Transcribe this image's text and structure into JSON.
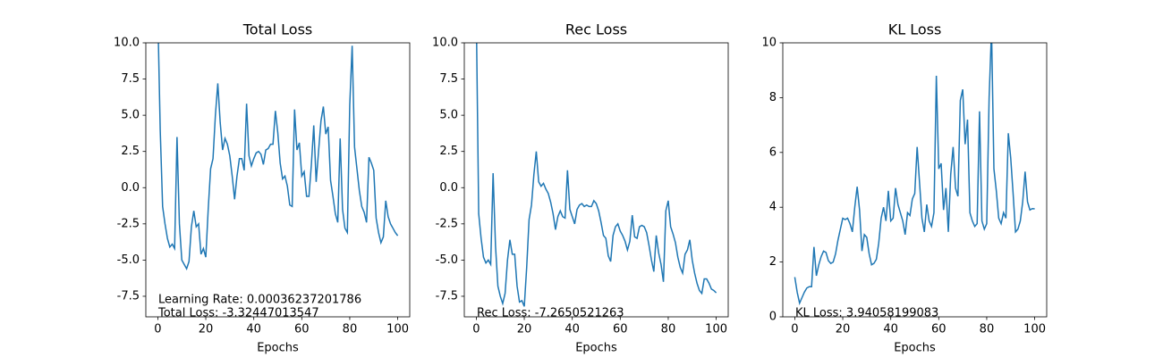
{
  "chart_data": [
    {
      "type": "line",
      "title": "Total Loss",
      "xlabel": "Epochs",
      "color": "#1f77b4",
      "annotations": [
        "Learning Rate: 0.00036237201786",
        "Total Loss: -3.32447013547"
      ],
      "xlim": [
        -5,
        105
      ],
      "xticks": [
        0,
        20,
        40,
        60,
        80,
        100
      ],
      "ylim": [
        -8.92,
        10
      ],
      "yticks": [
        -7.5,
        {
          "value": -5,
          "label": "-5.0"
        },
        -2.5,
        {
          "value": 0,
          "label": "0.0"
        },
        2.5,
        {
          "value": 5,
          "label": "5.0"
        },
        7.5,
        {
          "value": 10,
          "label": "10.0"
        }
      ],
      "x": [
        0,
        1,
        2,
        3,
        4,
        5,
        6,
        7,
        8,
        9,
        10,
        11,
        12,
        13,
        14,
        15,
        16,
        17,
        18,
        19,
        20,
        21,
        22,
        23,
        24,
        25,
        26,
        27,
        28,
        29,
        30,
        31,
        32,
        33,
        34,
        35,
        36,
        37,
        38,
        39,
        40,
        41,
        42,
        43,
        44,
        45,
        46,
        47,
        48,
        49,
        50,
        51,
        52,
        53,
        54,
        55,
        56,
        57,
        58,
        59,
        60,
        61,
        62,
        63,
        64,
        65,
        66,
        67,
        68,
        69,
        70,
        71,
        72,
        73,
        74,
        75,
        76,
        77,
        78,
        79,
        80,
        81,
        82,
        83,
        84,
        85,
        86,
        87,
        88,
        89,
        90,
        91,
        92,
        93,
        94,
        95,
        96,
        97,
        98,
        99,
        100
      ],
      "values": [
        12,
        4,
        -1.3,
        -2.5,
        -3.5,
        -4.1,
        -3.9,
        -4.2,
        3.5,
        -2.5,
        -5,
        -5.3,
        -5.6,
        -5.1,
        -2.7,
        -1.6,
        -2.7,
        -2.5,
        -4.6,
        -4.2,
        -4.8,
        -1.5,
        1.3,
        2,
        5,
        7.2,
        4.5,
        2.6,
        3.4,
        3,
        2.2,
        0.8,
        -0.8,
        0.8,
        2,
        2,
        1.2,
        5.8,
        2.2,
        1.5,
        2,
        2.4,
        2.5,
        2.3,
        1.6,
        2.6,
        2.7,
        3,
        3,
        5.3,
        3.8,
        1.7,
        0.6,
        0.8,
        0.1,
        -1.2,
        -1.3,
        5.4,
        2.6,
        3.1,
        0.8,
        1.1,
        -0.6,
        -0.6,
        1.6,
        4.3,
        0.4,
        2.5,
        4.6,
        5.6,
        3.7,
        4.2,
        0.5,
        -0.6,
        -1.8,
        -2.4,
        3.4,
        -1.5,
        -2.8,
        -3.1,
        5.7,
        9.8,
        2.8,
        1.3,
        -0.2,
        -1.3,
        -1.7,
        -2.4,
        2.1,
        1.7,
        1.2,
        -2.1,
        -3.1,
        -3.8,
        -3.4,
        -0.9,
        -2,
        -2.5,
        -2.8,
        -3.1,
        -3.32
      ]
    },
    {
      "type": "line",
      "title": "Rec Loss",
      "xlabel": "Epochs",
      "color": "#1f77b4",
      "annotations": [
        "Rec Loss: -7.2650521263"
      ],
      "xlim": [
        -5,
        105
      ],
      "xticks": [
        0,
        20,
        40,
        60,
        80,
        100
      ],
      "ylim": [
        -8.92,
        10
      ],
      "yticks": [
        -7.5,
        {
          "value": -5,
          "label": "-5.0"
        },
        -2.5,
        {
          "value": 0,
          "label": "0.0"
        },
        2.5,
        {
          "value": 5,
          "label": "5.0"
        },
        7.5,
        {
          "value": 10,
          "label": "10.0"
        }
      ],
      "x": [
        0,
        1,
        2,
        3,
        4,
        5,
        6,
        7,
        8,
        9,
        10,
        11,
        12,
        13,
        14,
        15,
        16,
        17,
        18,
        19,
        20,
        21,
        22,
        23,
        24,
        25,
        26,
        27,
        28,
        29,
        30,
        31,
        32,
        33,
        34,
        35,
        36,
        37,
        38,
        39,
        40,
        41,
        42,
        43,
        44,
        45,
        46,
        47,
        48,
        49,
        50,
        51,
        52,
        53,
        54,
        55,
        56,
        57,
        58,
        59,
        60,
        61,
        62,
        63,
        64,
        65,
        66,
        67,
        68,
        69,
        70,
        71,
        72,
        73,
        74,
        75,
        76,
        77,
        78,
        79,
        80,
        81,
        82,
        83,
        84,
        85,
        86,
        87,
        88,
        89,
        90,
        91,
        92,
        93,
        94,
        95,
        96,
        97,
        98,
        99,
        100
      ],
      "values": [
        12,
        -1.8,
        -3.5,
        -4.8,
        -5.2,
        -5,
        -5.3,
        1,
        -4,
        -6.8,
        -7.5,
        -8,
        -7.3,
        -5,
        -3.6,
        -4.6,
        -4.6,
        -6.8,
        -7.9,
        -7.8,
        -8.2,
        -5.5,
        -2.2,
        -1.2,
        0.9,
        2.5,
        0.4,
        0.1,
        0.3,
        -0.1,
        -0.4,
        -1,
        -1.8,
        -2.9,
        -2,
        -1.6,
        -2,
        -2.1,
        1.2,
        -1.5,
        -2,
        -2.5,
        -1.5,
        -1.2,
        -1.1,
        -1.3,
        -1.2,
        -1.3,
        -1.3,
        -0.9,
        -1.1,
        -1.6,
        -2.4,
        -3.3,
        -3.5,
        -4.7,
        -5.1,
        -3.3,
        -2.7,
        -2.5,
        -3,
        -3.3,
        -3.7,
        -4.3,
        -3.7,
        -1.9,
        -3.4,
        -3.5,
        -2.7,
        -2.6,
        -2.7,
        -3.1,
        -4,
        -5,
        -5.8,
        -3.3,
        -4.5,
        -5.3,
        -6.5,
        -1.6,
        -0.9,
        -2.7,
        -3.2,
        -3.8,
        -4.8,
        -5.5,
        -5.9,
        -4.6,
        -4.3,
        -3.6,
        -5,
        -5.9,
        -6.6,
        -7.1,
        -7.3,
        -6.3,
        -6.3,
        -6.6,
        -7,
        -7.1,
        -7.2650521263
      ]
    },
    {
      "type": "line",
      "title": "KL Loss",
      "xlabel": "Epochs",
      "color": "#1f77b4",
      "annotations": [
        "KL Loss: 3.94058199083"
      ],
      "xlim": [
        -5,
        105
      ],
      "xticks": [
        0,
        20,
        40,
        60,
        80,
        100
      ],
      "ylim": [
        0,
        10
      ],
      "yticks": [
        0,
        2,
        4,
        6,
        8,
        10
      ],
      "x": [
        0,
        1,
        2,
        3,
        4,
        5,
        6,
        7,
        8,
        9,
        10,
        11,
        12,
        13,
        14,
        15,
        16,
        17,
        18,
        19,
        20,
        21,
        22,
        23,
        24,
        25,
        26,
        27,
        28,
        29,
        30,
        31,
        32,
        33,
        34,
        35,
        36,
        37,
        38,
        39,
        40,
        41,
        42,
        43,
        44,
        45,
        46,
        47,
        48,
        49,
        50,
        51,
        52,
        53,
        54,
        55,
        56,
        57,
        58,
        59,
        60,
        61,
        62,
        63,
        64,
        65,
        66,
        67,
        68,
        69,
        70,
        71,
        72,
        73,
        74,
        75,
        76,
        77,
        78,
        79,
        80,
        81,
        82,
        83,
        84,
        85,
        86,
        87,
        88,
        89,
        90,
        91,
        92,
        93,
        94,
        95,
        96,
        97,
        98,
        99,
        100
      ],
      "values": [
        1.45,
        0.9,
        0.5,
        0.7,
        0.9,
        1.05,
        1.1,
        1.1,
        2.55,
        1.5,
        1.9,
        2.2,
        2.4,
        2.35,
        2.05,
        1.95,
        2.0,
        2.3,
        2.8,
        3.2,
        3.6,
        3.55,
        3.6,
        3.4,
        3.1,
        4.0,
        4.75,
        3.9,
        2.4,
        3.0,
        2.9,
        2.3,
        1.9,
        1.95,
        2.1,
        2.7,
        3.6,
        4.0,
        3.5,
        4.6,
        3.5,
        3.6,
        4.7,
        4.1,
        3.8,
        3.5,
        3.0,
        3.8,
        3.7,
        4.3,
        4.5,
        6.2,
        4.9,
        3.6,
        3.1,
        4.1,
        3.5,
        3.3,
        3.8,
        8.8,
        5.4,
        5.6,
        3.9,
        4.7,
        3.1,
        5.2,
        6.2,
        4.7,
        4.4,
        7.9,
        8.3,
        6.3,
        7.2,
        3.8,
        3.5,
        3.3,
        3.4,
        7.5,
        3.5,
        3.2,
        3.4,
        8.0,
        10.5,
        5.4,
        4.6,
        3.6,
        3.4,
        3.8,
        3.6,
        6.7,
        5.8,
        4.5,
        3.1,
        3.2,
        3.5,
        4.2,
        5.3,
        4.2,
        3.9,
        3.95,
        3.94058199083
      ]
    }
  ]
}
